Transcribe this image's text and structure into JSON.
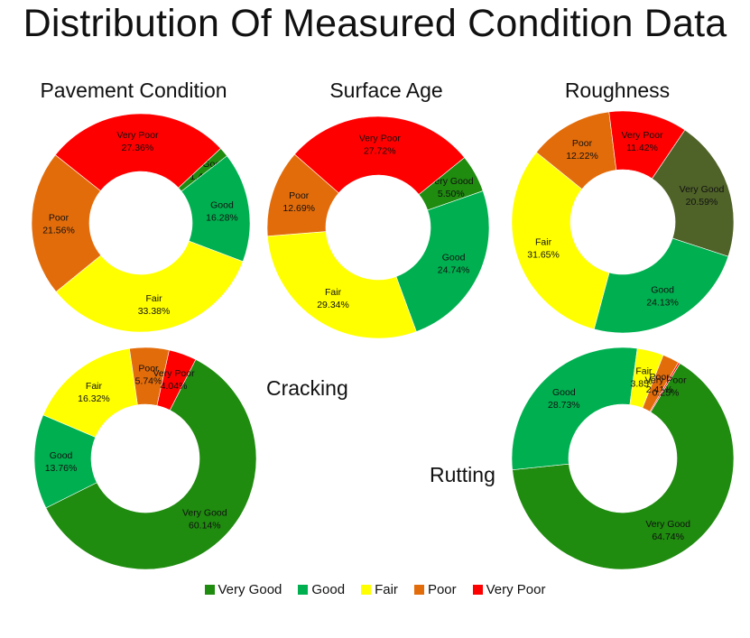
{
  "title": "Distribution Of Measured Condition Data",
  "legend": [
    {
      "label": "Very Good",
      "color": "#1F8B0F"
    },
    {
      "label": "Good",
      "color": "#00B050"
    },
    {
      "label": "Fair",
      "color": "#FFFF00"
    },
    {
      "label": "Poor",
      "color": "#E36C0A"
    },
    {
      "label": "Very Poor",
      "color": "#FF0000"
    }
  ],
  "chart_data": [
    {
      "type": "donut",
      "title": "Pavement Condition",
      "slices": [
        {
          "label": "Very Good",
          "value": 1.42,
          "text": "1.42%",
          "color": "#1F8B0F"
        },
        {
          "label": "Good",
          "value": 16.28,
          "text": "16.28%",
          "color": "#00B050"
        },
        {
          "label": "Fair",
          "value": 33.38,
          "text": "33.38%",
          "color": "#FFFF00"
        },
        {
          "label": "Poor",
          "value": 21.56,
          "text": "21.56%",
          "color": "#E36C0A"
        },
        {
          "label": "Very Poor",
          "value": 27.36,
          "text": "27.36%",
          "color": "#FF0000"
        }
      ]
    },
    {
      "type": "donut",
      "title": "Surface Age",
      "slices": [
        {
          "label": "Very Good",
          "value": 5.5,
          "text": "5.50%",
          "color": "#1F8B0F"
        },
        {
          "label": "Good",
          "value": 24.74,
          "text": "24.74%",
          "color": "#00B050"
        },
        {
          "label": "Fair",
          "value": 29.34,
          "text": "29.34%",
          "color": "#FFFF00"
        },
        {
          "label": "Poor",
          "value": 12.69,
          "text": "12.69%",
          "color": "#E36C0A"
        },
        {
          "label": "Very Poor",
          "value": 27.72,
          "text": "27.72%",
          "color": "#FF0000"
        }
      ]
    },
    {
      "type": "donut",
      "title": "Roughness",
      "slices": [
        {
          "label": "Very Good",
          "value": 20.59,
          "text": "20.59%",
          "color": "#4F6228"
        },
        {
          "label": "Good",
          "value": 24.13,
          "text": "24.13%",
          "color": "#00B050"
        },
        {
          "label": "Fair",
          "value": 31.65,
          "text": "31.65%",
          "color": "#FFFF00"
        },
        {
          "label": "Poor",
          "value": 12.22,
          "text": "12.22%",
          "color": "#E36C0A"
        },
        {
          "label": "Very Poor",
          "value": 11.42,
          "text": "11.42%",
          "color": "#FF0000"
        }
      ]
    },
    {
      "type": "donut",
      "title": "Cracking",
      "slices": [
        {
          "label": "Very Good",
          "value": 60.14,
          "text": "60.14%",
          "color": "#1F8B0F"
        },
        {
          "label": "Good",
          "value": 13.76,
          "text": "13.76%",
          "color": "#00B050"
        },
        {
          "label": "Fair",
          "value": 16.32,
          "text": "16.32%",
          "color": "#FFFF00"
        },
        {
          "label": "Poor",
          "value": 5.74,
          "text": "5.74%",
          "color": "#E36C0A"
        },
        {
          "label": "Very Poor",
          "value": 4.04,
          "text": "4.04%",
          "color": "#FF0000"
        }
      ]
    },
    {
      "type": "donut",
      "title": "Rutting",
      "slices": [
        {
          "label": "Very Good",
          "value": 64.74,
          "text": "64.74%",
          "color": "#1F8B0F"
        },
        {
          "label": "Good",
          "value": 28.73,
          "text": "28.73%",
          "color": "#00B050"
        },
        {
          "label": "Fair",
          "value": 3.85,
          "text": "3.85%",
          "color": "#FFFF00"
        },
        {
          "label": "Poor",
          "value": 2.41,
          "text": "2.41%",
          "color": "#E36C0A"
        },
        {
          "label": "Very Poor",
          "value": 0.25,
          "text": "0.25%",
          "color": "#FF0000"
        }
      ]
    }
  ]
}
